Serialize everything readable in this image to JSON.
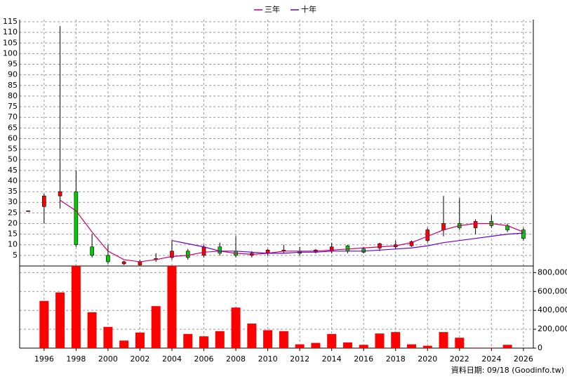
{
  "chart_data": {
    "type": "candlestick",
    "categories": [
      null,
      "1996",
      null,
      "1998",
      null,
      "2000",
      null,
      "2002",
      null,
      "2004",
      null,
      "2006",
      null,
      "2008",
      null,
      "2010",
      null,
      "2012",
      null,
      "2014",
      null,
      "2016",
      null,
      "2018",
      null,
      "2020",
      null,
      "2022",
      null,
      "2024",
      null,
      "2026"
    ],
    "open": [
      26,
      28,
      33,
      35,
      9,
      5,
      1,
      0.5,
      3,
      4,
      7,
      5,
      9,
      7,
      5,
      6,
      7,
      7,
      6.5,
      7,
      9.5,
      8,
      8.5,
      9,
      9.5,
      12,
      17,
      20,
      18,
      21,
      19,
      17
    ],
    "high": [
      26,
      34,
      113,
      45,
      15,
      10,
      2.5,
      3,
      6,
      12,
      8,
      10,
      11,
      14,
      7,
      8,
      10,
      9,
      8,
      11,
      10,
      9,
      11,
      12,
      12,
      18,
      33,
      32,
      22,
      24,
      20,
      18
    ],
    "low": [
      26,
      20,
      27,
      9,
      4,
      1,
      0.5,
      0,
      2,
      3,
      3,
      4,
      5,
      4,
      4,
      5,
      6,
      5,
      6,
      6,
      6,
      6,
      7,
      8,
      9,
      11,
      14,
      17,
      15,
      18,
      16,
      12
    ],
    "close": [
      26,
      33,
      35,
      10,
      5,
      2,
      2,
      2,
      3.5,
      7,
      4,
      9,
      6,
      5,
      6,
      7.5,
      7.5,
      6,
      7.5,
      9,
      7,
      6.5,
      10.5,
      10,
      11.5,
      17,
      20,
      18,
      21,
      19,
      17,
      13
    ],
    "up_color": "#ff0000",
    "down_color": "#00cc00",
    "lines": [
      {
        "name": "三年",
        "color": "#cc0066",
        "values": [
          null,
          null,
          31,
          26,
          16,
          7,
          3,
          2,
          3,
          4.5,
          5,
          6.5,
          7,
          6,
          5.5,
          6,
          7,
          7,
          7,
          7.5,
          8,
          8.5,
          9,
          9.5,
          11,
          14,
          17,
          19,
          20,
          20,
          19,
          16
        ]
      },
      {
        "name": "十年",
        "color": "#6600cc",
        "values": [
          null,
          null,
          null,
          null,
          null,
          null,
          null,
          null,
          null,
          12,
          10.5,
          9,
          7,
          7,
          6.5,
          6,
          6,
          6.5,
          6.5,
          7,
          7,
          7,
          7.5,
          8,
          8.5,
          9.5,
          11,
          12,
          13,
          14,
          15,
          15.5
        ]
      }
    ],
    "ylim": [
      0,
      116
    ],
    "yticks": [
      5,
      10,
      15,
      20,
      25,
      30,
      35,
      40,
      45,
      50,
      55,
      60,
      65,
      70,
      75,
      80,
      85,
      90,
      95,
      100,
      105,
      110,
      115
    ],
    "grid": true,
    "volume": {
      "color": "#ff0000",
      "values": [
        null,
        500000,
        590000,
        870000,
        380000,
        225000,
        80000,
        165000,
        445000,
        870000,
        150000,
        125000,
        180000,
        430000,
        260000,
        190000,
        180000,
        40000,
        55000,
        150000,
        60000,
        35000,
        155000,
        170000,
        40000,
        25000,
        170000,
        110000,
        5000,
        5000,
        35000,
        null
      ],
      "ylim": [
        0,
        870000
      ],
      "yticks": [
        0,
        {
          "value": 200000,
          "label": "200,000"
        },
        {
          "value": 400000,
          "label": "400,000"
        },
        {
          "value": 600000,
          "label": "600,000"
        },
        {
          "value": 800000,
          "label": "800,000"
        }
      ]
    },
    "note": "資料日期: 09/18 (Goodinfo.tw)"
  }
}
